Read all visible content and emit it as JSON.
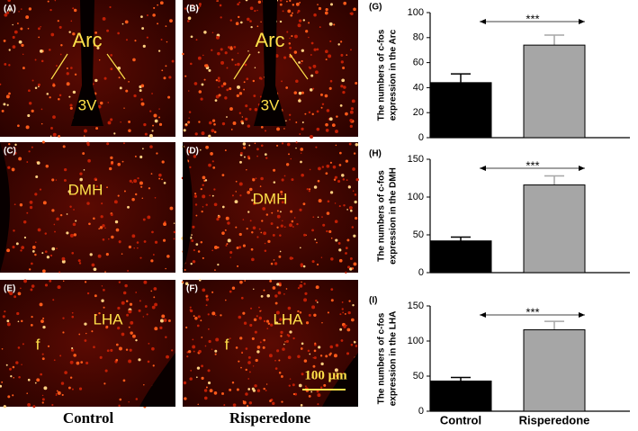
{
  "images": [
    {
      "label": "(A)",
      "annotations": [
        "Arc",
        "3V"
      ]
    },
    {
      "label": "(B)",
      "annotations": [
        "Arc",
        "3V"
      ]
    },
    {
      "label": "(C)",
      "annotations": [
        "DMH"
      ]
    },
    {
      "label": "(D)",
      "annotations": [
        "DMH"
      ]
    },
    {
      "label": "(E)",
      "annotations": [
        "LHA",
        "f"
      ]
    },
    {
      "label": "(F)",
      "annotations": [
        "LHA",
        "f"
      ]
    }
  ],
  "scale_bar": "100 μm",
  "columns": [
    "Control",
    "Risperedone"
  ],
  "chart_data": [
    {
      "type": "bar",
      "panel_label": "(G)",
      "ylabel": [
        "The numbers of c-fos",
        "expression in the Arc"
      ],
      "annotation": "***",
      "categories": [
        "Control",
        "Risperedone"
      ],
      "values": [
        44,
        74
      ],
      "errors": [
        7,
        8
      ],
      "colors": [
        "#000000",
        "#a6a6a6"
      ],
      "ylim": [
        0,
        100
      ],
      "yticks": [
        0,
        20,
        40,
        60,
        80,
        100
      ]
    },
    {
      "type": "bar",
      "panel_label": "(H)",
      "ylabel": [
        "The numbers of c-fos",
        "expression in the DMH"
      ],
      "annotation": "***",
      "categories": [
        "Control",
        "Risperedone"
      ],
      "values": [
        42,
        116
      ],
      "errors": [
        5,
        12
      ],
      "colors": [
        "#000000",
        "#a6a6a6"
      ],
      "ylim": [
        0,
        150
      ],
      "yticks": [
        0,
        50,
        100,
        150
      ]
    },
    {
      "type": "bar",
      "panel_label": "(I)",
      "ylabel": [
        "The numbers of c-fos",
        "expression in the LHA"
      ],
      "annotation": "***",
      "categories": [
        "Control",
        "Risperedone"
      ],
      "values": [
        43,
        116
      ],
      "errors": [
        5,
        12
      ],
      "colors": [
        "#000000",
        "#a6a6a6"
      ],
      "ylim": [
        0,
        150
      ],
      "yticks": [
        0,
        50,
        100,
        150
      ]
    }
  ]
}
